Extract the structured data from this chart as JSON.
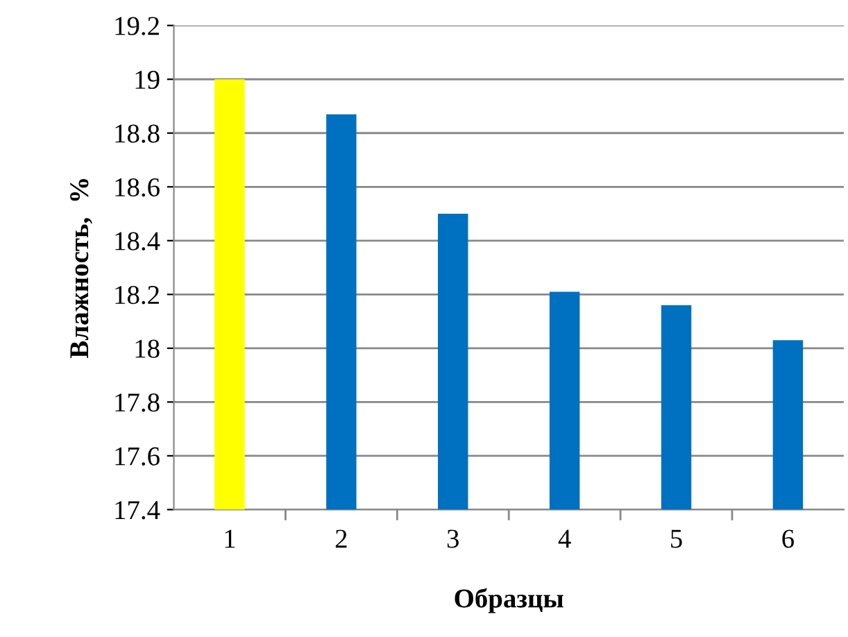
{
  "chart_data": {
    "type": "bar",
    "xlabel": "Образцы",
    "ylabel": "Влажность,  %",
    "categories": [
      "1",
      "2",
      "3",
      "4",
      "5",
      "6"
    ],
    "values": [
      19.0,
      18.87,
      18.5,
      18.21,
      18.16,
      18.03
    ],
    "colors": [
      "#ffff00",
      "#0070c0",
      "#0070c0",
      "#0070c0",
      "#0070c0",
      "#0070c0"
    ],
    "ylim": [
      17.4,
      19.2
    ],
    "yticks": [
      {
        "value": 17.4,
        "label": "17.4"
      },
      {
        "value": 17.6,
        "label": "17.6"
      },
      {
        "value": 17.8,
        "label": "17.8"
      },
      {
        "value": 18,
        "label": "18"
      },
      {
        "value": 18.2,
        "label": "18.2"
      },
      {
        "value": 18.4,
        "label": "18.4"
      },
      {
        "value": 18.6,
        "label": "18.6"
      },
      {
        "value": 18.8,
        "label": "18.8"
      },
      {
        "value": 19,
        "label": "19"
      },
      {
        "value": 19.2,
        "label": "19.2"
      }
    ],
    "grid": "y"
  }
}
